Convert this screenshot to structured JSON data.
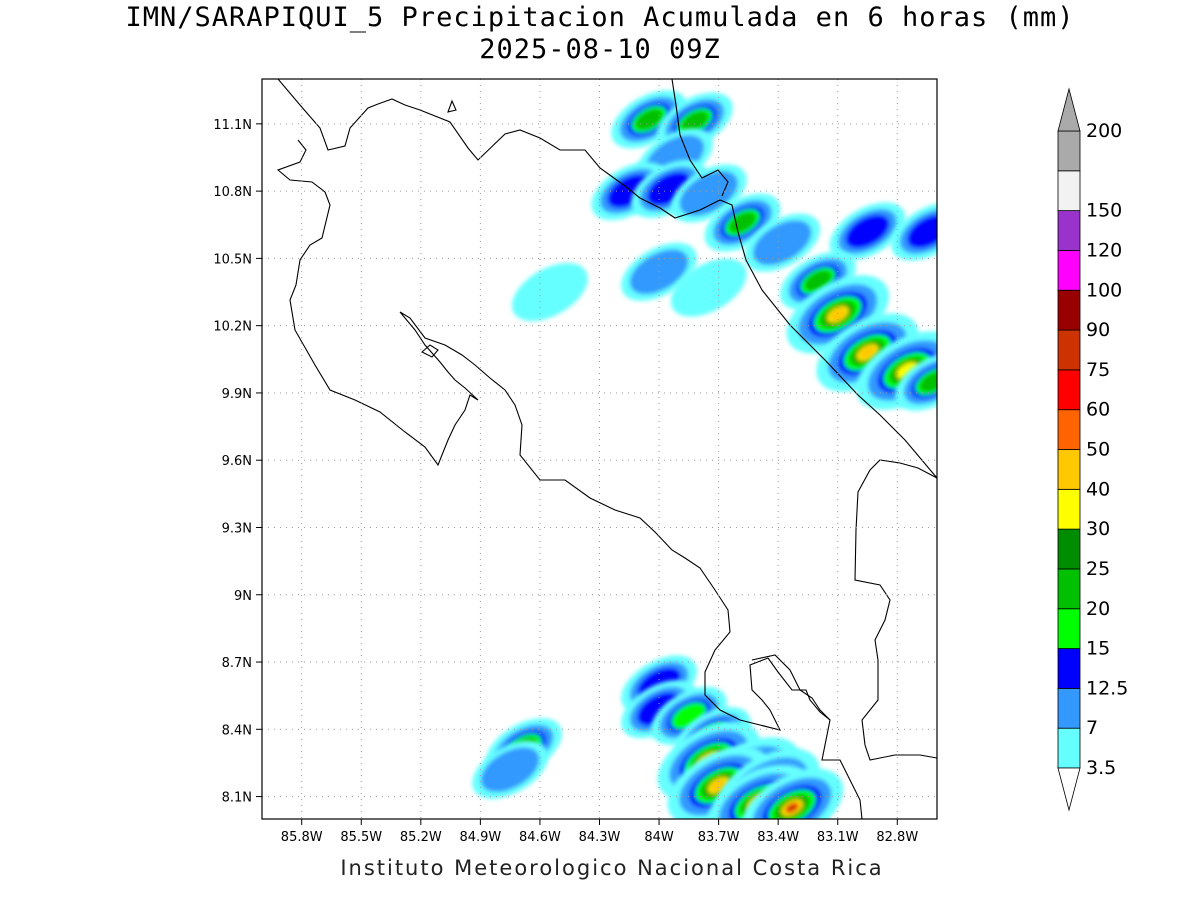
{
  "title_line1": "IMN/SARAPIQUI_5 Precipitacion Acumulada en 6 horas (mm)",
  "title_line2": "2025-08-10 09Z",
  "footer": "Instituto Meteorologico Nacional Costa Rica",
  "map": {
    "lon_range": [
      -86.0,
      -82.6
    ],
    "lat_range": [
      8.0,
      11.3
    ],
    "lon_ticks": [
      {
        "value": -85.8,
        "label": "85.8W"
      },
      {
        "value": -85.5,
        "label": "85.5W"
      },
      {
        "value": -85.2,
        "label": "85.2W"
      },
      {
        "value": -84.9,
        "label": "84.9W"
      },
      {
        "value": -84.6,
        "label": "84.6W"
      },
      {
        "value": -84.3,
        "label": "84.3W"
      },
      {
        "value": -84.0,
        "label": "84W"
      },
      {
        "value": -83.7,
        "label": "83.7W"
      },
      {
        "value": -83.4,
        "label": "83.4W"
      },
      {
        "value": -83.1,
        "label": "83.1W"
      },
      {
        "value": -82.8,
        "label": "82.8W"
      }
    ],
    "lat_ticks": [
      {
        "value": 8.1,
        "label": "8.1N"
      },
      {
        "value": 8.4,
        "label": "8.4N"
      },
      {
        "value": 8.7,
        "label": "8.7N"
      },
      {
        "value": 9.0,
        "label": "9N"
      },
      {
        "value": 9.3,
        "label": "9.3N"
      },
      {
        "value": 9.6,
        "label": "9.6N"
      },
      {
        "value": 9.9,
        "label": "9.9N"
      },
      {
        "value": 10.2,
        "label": "10.2N"
      },
      {
        "value": 10.5,
        "label": "10.5N"
      },
      {
        "value": 10.8,
        "label": "10.8N"
      },
      {
        "value": 11.1,
        "label": "11.1N"
      }
    ],
    "grid": true
  },
  "legend": {
    "levels": [
      {
        "label": "3.5",
        "color": "#66ffff"
      },
      {
        "label": "7",
        "color": "#3399ff"
      },
      {
        "label": "12.5",
        "color": "#0000ff"
      },
      {
        "label": "15",
        "color": "#00ff00"
      },
      {
        "label": "20",
        "color": "#00c000"
      },
      {
        "label": "25",
        "color": "#008c00"
      },
      {
        "label": "30",
        "color": "#ffff00"
      },
      {
        "label": "40",
        "color": "#ffc800"
      },
      {
        "label": "50",
        "color": "#ff6400"
      },
      {
        "label": "60",
        "color": "#ff0000"
      },
      {
        "label": "75",
        "color": "#cc3300"
      },
      {
        "label": "90",
        "color": "#990000"
      },
      {
        "label": "100",
        "color": "#ff00ff"
      },
      {
        "label": "120",
        "color": "#9933cc"
      },
      {
        "label": "150",
        "color": "#f2f2f2"
      },
      {
        "label": "200",
        "color": "#aaaaaa"
      }
    ],
    "bottom_triangle_color": "#ffffff"
  },
  "precip_cells": [
    {
      "lon": -84.05,
      "lat": 11.12,
      "max": 20
    },
    {
      "lon": -83.82,
      "lat": 11.11,
      "max": 20
    },
    {
      "lon": -83.92,
      "lat": 10.95,
      "max": 7
    },
    {
      "lon": -84.15,
      "lat": 10.8,
      "max": 12.5
    },
    {
      "lon": -83.95,
      "lat": 10.81,
      "max": 12.5
    },
    {
      "lon": -83.75,
      "lat": 10.79,
      "max": 7
    },
    {
      "lon": -83.58,
      "lat": 10.66,
      "max": 20
    },
    {
      "lon": -83.38,
      "lat": 10.57,
      "max": 7
    },
    {
      "lon": -82.95,
      "lat": 10.62,
      "max": 12.5
    },
    {
      "lon": -82.64,
      "lat": 10.62,
      "max": 12.5
    },
    {
      "lon": -84.0,
      "lat": 10.44,
      "max": 7
    },
    {
      "lon": -83.75,
      "lat": 10.37,
      "max": 3.5
    },
    {
      "lon": -84.55,
      "lat": 10.35,
      "max": 3.5
    },
    {
      "lon": -83.2,
      "lat": 10.4,
      "max": 20
    },
    {
      "lon": -83.1,
      "lat": 10.25,
      "max": 40
    },
    {
      "lon": -82.95,
      "lat": 10.08,
      "max": 40
    },
    {
      "lon": -82.75,
      "lat": 10.0,
      "max": 30
    },
    {
      "lon": -82.62,
      "lat": 9.95,
      "max": 20
    },
    {
      "lon": -84.0,
      "lat": 8.6,
      "max": 12.5
    },
    {
      "lon": -84.0,
      "lat": 8.49,
      "max": 12.5
    },
    {
      "lon": -83.85,
      "lat": 8.46,
      "max": 15
    },
    {
      "lon": -83.73,
      "lat": 8.37,
      "max": 15
    },
    {
      "lon": -84.68,
      "lat": 8.32,
      "max": 20
    },
    {
      "lon": -84.75,
      "lat": 8.22,
      "max": 7
    },
    {
      "lon": -83.75,
      "lat": 8.26,
      "max": 40
    },
    {
      "lon": -83.55,
      "lat": 8.19,
      "max": 30
    },
    {
      "lon": -83.7,
      "lat": 8.15,
      "max": 40
    },
    {
      "lon": -83.45,
      "lat": 8.14,
      "max": 60
    },
    {
      "lon": -83.5,
      "lat": 8.07,
      "max": 40
    },
    {
      "lon": -83.33,
      "lat": 8.05,
      "max": 75
    }
  ]
}
